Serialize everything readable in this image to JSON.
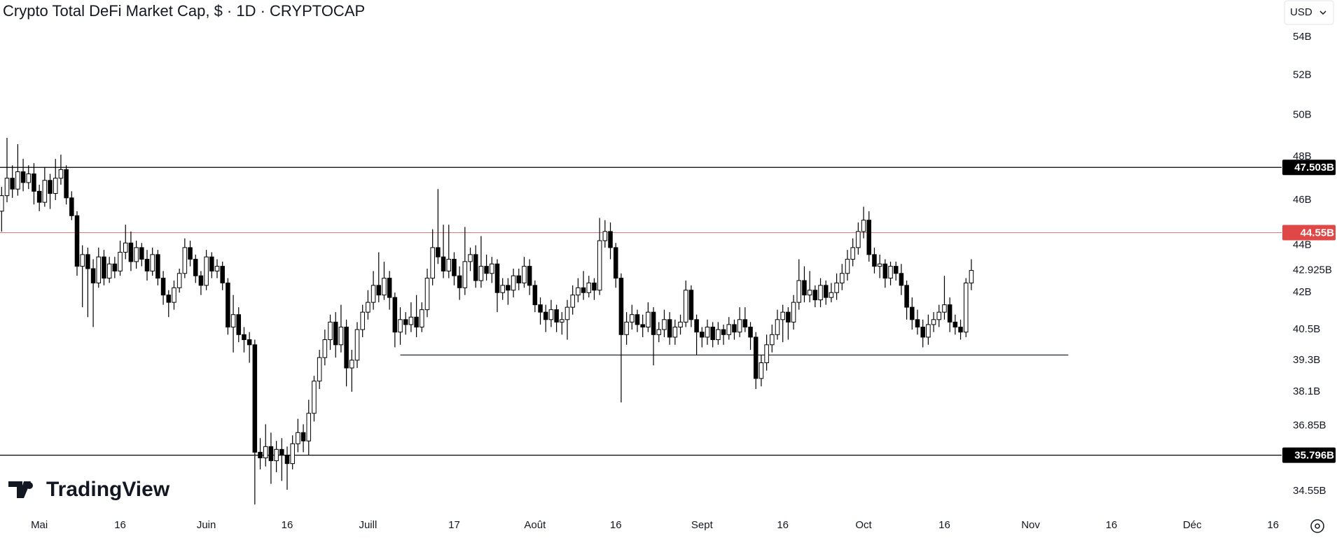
{
  "chart_data": {
    "type": "candlestick",
    "title": "Crypto Total DeFi Market Cap, $ · 1D · CRYPTOCAP",
    "currency": "USD",
    "watermark": "TradingView",
    "ylog": true,
    "ylim": [
      33.8,
      56.0
    ],
    "xlim": [
      -7.3,
      230.6
    ],
    "up_color": "#ffffff",
    "down_color": "#000000",
    "yticks": [
      {
        "value": 34.55,
        "label": "34.55B"
      },
      {
        "value": 36.85,
        "label": "36.85B"
      },
      {
        "value": 38.1,
        "label": "38.1B"
      },
      {
        "value": 39.3,
        "label": "39.3B"
      },
      {
        "value": 40.5,
        "label": "40.5B"
      },
      {
        "value": 42,
        "label": "42B"
      },
      {
        "value": 42.925,
        "label": "42.925B"
      },
      {
        "value": 44,
        "label": "44B"
      },
      {
        "value": 46,
        "label": "46B"
      },
      {
        "value": 48,
        "label": "48B"
      },
      {
        "value": 50,
        "label": "50B"
      },
      {
        "value": 52,
        "label": "52B"
      },
      {
        "value": 54,
        "label": "54B"
      }
    ],
    "xticks": [
      {
        "value": 0,
        "label": "Mai"
      },
      {
        "value": 15,
        "label": "16"
      },
      {
        "value": 31,
        "label": "Juin"
      },
      {
        "value": 46,
        "label": "16"
      },
      {
        "value": 61,
        "label": "Juill"
      },
      {
        "value": 77,
        "label": "17"
      },
      {
        "value": 92,
        "label": "Août"
      },
      {
        "value": 107,
        "label": "16"
      },
      {
        "value": 123,
        "label": "Sept"
      },
      {
        "value": 138,
        "label": "16"
      },
      {
        "value": 153,
        "label": "Oct"
      },
      {
        "value": 168,
        "label": "16"
      },
      {
        "value": 184,
        "label": "Nov"
      },
      {
        "value": 199,
        "label": "16"
      },
      {
        "value": 214,
        "label": "Déc"
      },
      {
        "value": 229,
        "label": "16"
      }
    ],
    "levels": [
      {
        "value": 47.503,
        "label": "47.503B",
        "color": "#000000"
      },
      {
        "value": 44.55,
        "label": "44.55B",
        "color": "#e04848"
      },
      {
        "value": 35.796,
        "label": "35.796B",
        "color": "#000000"
      }
    ],
    "lines": [
      {
        "value": 39.5,
        "xlim": [
          67,
          191
        ]
      }
    ],
    "x": [
      -7,
      -6,
      -5,
      -4,
      -3,
      -2,
      -1,
      0,
      1,
      2,
      3,
      4,
      5,
      6,
      7,
      8,
      9,
      10,
      11,
      12,
      13,
      14,
      15,
      16,
      17,
      18,
      19,
      20,
      21,
      22,
      23,
      24,
      25,
      26,
      27,
      28,
      29,
      30,
      31,
      32,
      33,
      34,
      35,
      36,
      37,
      38,
      39,
      40,
      41,
      42,
      43,
      44,
      45,
      46,
      47,
      48,
      49,
      50,
      51,
      52,
      53,
      54,
      55,
      56,
      57,
      58,
      59,
      60,
      61,
      62,
      63,
      64,
      65,
      66,
      67,
      68,
      69,
      70,
      71,
      72,
      73,
      74,
      75,
      76,
      77,
      78,
      79,
      80,
      81,
      82,
      83,
      84,
      85,
      86,
      87,
      88,
      89,
      90,
      91,
      92,
      93,
      94,
      95,
      96,
      97,
      98,
      99,
      100,
      101,
      102,
      103,
      104,
      105,
      106,
      107,
      108,
      109,
      110,
      111,
      112,
      113,
      114,
      115,
      116,
      117,
      118,
      119,
      120,
      121,
      122,
      123,
      124,
      125,
      126,
      127,
      128,
      129,
      130,
      131,
      132,
      133,
      134,
      135,
      136,
      137,
      138,
      139,
      140,
      141,
      142,
      143,
      144,
      145,
      146,
      147,
      148,
      149,
      150,
      151,
      152,
      153,
      154,
      155,
      156,
      157,
      158,
      159,
      160,
      161,
      162,
      163,
      164,
      165,
      166,
      167,
      168,
      169,
      170,
      171,
      172,
      173
    ],
    "candles": [
      [
        45.5,
        46.6,
        44.6,
        46.2
      ],
      [
        46.2,
        48.9,
        45.9,
        47.0
      ],
      [
        47.0,
        47.6,
        46.1,
        46.5
      ],
      [
        46.5,
        48.6,
        46.2,
        47.3
      ],
      [
        47.3,
        47.9,
        46.4,
        46.8
      ],
      [
        46.8,
        47.6,
        46.5,
        47.2
      ],
      [
        47.2,
        47.7,
        45.8,
        46.4
      ],
      [
        46.4,
        46.7,
        45.5,
        45.9
      ],
      [
        45.9,
        47.5,
        45.7,
        46.9
      ],
      [
        46.9,
        47.2,
        45.6,
        46.3
      ],
      [
        46.3,
        47.9,
        46.0,
        47.0
      ],
      [
        47.0,
        48.1,
        46.7,
        47.4
      ],
      [
        47.4,
        47.6,
        45.8,
        46.1
      ],
      [
        46.1,
        46.4,
        45.1,
        45.3
      ],
      [
        45.3,
        45.5,
        42.7,
        43.1
      ],
      [
        43.1,
        44.0,
        41.4,
        43.6
      ],
      [
        43.6,
        43.9,
        41.0,
        43.0
      ],
      [
        43.0,
        43.4,
        40.6,
        42.4
      ],
      [
        42.4,
        43.9,
        42.2,
        43.5
      ],
      [
        43.5,
        43.8,
        42.3,
        42.6
      ],
      [
        42.6,
        43.5,
        42.4,
        43.2
      ],
      [
        43.2,
        43.5,
        42.6,
        42.9
      ],
      [
        42.9,
        44.2,
        42.7,
        43.7
      ],
      [
        43.7,
        44.9,
        43.4,
        44.1
      ],
      [
        44.1,
        44.6,
        42.9,
        43.3
      ],
      [
        43.3,
        44.2,
        43.0,
        43.9
      ],
      [
        43.9,
        44.1,
        43.1,
        43.4
      ],
      [
        43.4,
        43.8,
        42.5,
        42.9
      ],
      [
        42.9,
        43.9,
        42.7,
        43.6
      ],
      [
        43.6,
        43.8,
        42.3,
        42.6
      ],
      [
        42.6,
        42.9,
        41.5,
        41.9
      ],
      [
        41.9,
        42.1,
        41.0,
        41.6
      ],
      [
        41.6,
        42.5,
        41.3,
        42.2
      ],
      [
        42.2,
        43.0,
        42.0,
        42.8
      ],
      [
        42.8,
        44.3,
        42.6,
        43.9
      ],
      [
        43.9,
        44.2,
        43.1,
        43.4
      ],
      [
        43.4,
        43.6,
        42.4,
        42.7
      ],
      [
        42.7,
        42.9,
        41.9,
        42.3
      ],
      [
        42.3,
        43.8,
        42.1,
        43.5
      ],
      [
        43.5,
        43.7,
        42.6,
        42.9
      ],
      [
        42.9,
        43.4,
        42.6,
        43.1
      ],
      [
        43.1,
        43.3,
        42.1,
        42.4
      ],
      [
        42.4,
        42.6,
        40.3,
        40.6
      ],
      [
        40.6,
        41.9,
        39.6,
        41.1
      ],
      [
        41.1,
        41.4,
        40.0,
        40.3
      ],
      [
        40.3,
        40.6,
        39.6,
        40.1
      ],
      [
        40.1,
        40.4,
        39.2,
        39.9
      ],
      [
        39.9,
        40.1,
        34.1,
        35.9
      ],
      [
        35.9,
        36.4,
        35.3,
        35.7
      ],
      [
        35.7,
        36.9,
        35.4,
        36.1
      ],
      [
        36.1,
        36.6,
        34.8,
        35.6
      ],
      [
        35.6,
        36.3,
        35.2,
        36.0
      ],
      [
        36.0,
        36.4,
        34.9,
        35.8
      ],
      [
        35.8,
        36.1,
        34.6,
        35.5
      ],
      [
        35.5,
        36.5,
        35.3,
        36.2
      ],
      [
        36.2,
        37.1,
        35.9,
        36.6
      ],
      [
        36.6,
        36.9,
        35.9,
        36.3
      ],
      [
        36.3,
        37.8,
        35.8,
        37.3
      ],
      [
        37.3,
        38.7,
        37.0,
        38.5
      ],
      [
        38.5,
        39.7,
        38.2,
        39.4
      ],
      [
        39.4,
        40.5,
        39.1,
        40.1
      ],
      [
        40.1,
        41.1,
        39.7,
        40.8
      ],
      [
        40.8,
        41.2,
        39.4,
        39.9
      ],
      [
        39.9,
        41.5,
        39.6,
        40.6
      ],
      [
        40.6,
        40.9,
        38.3,
        39.0
      ],
      [
        39.0,
        39.7,
        38.1,
        39.3
      ],
      [
        39.3,
        40.8,
        39.0,
        40.5
      ],
      [
        40.5,
        41.5,
        40.2,
        41.2
      ],
      [
        41.2,
        42.1,
        40.9,
        41.6
      ],
      [
        41.6,
        42.9,
        41.3,
        42.3
      ],
      [
        42.3,
        43.7,
        41.6,
        41.9
      ],
      [
        41.9,
        43.3,
        41.7,
        42.6
      ],
      [
        42.6,
        42.9,
        41.3,
        41.8
      ],
      [
        41.8,
        42.0,
        39.8,
        40.4
      ],
      [
        40.4,
        41.4,
        39.9,
        40.9
      ],
      [
        40.9,
        41.2,
        40.3,
        40.7
      ],
      [
        40.7,
        41.6,
        40.4,
        41.0
      ],
      [
        41.0,
        41.9,
        40.2,
        40.6
      ],
      [
        40.6,
        41.6,
        40.4,
        41.3
      ],
      [
        41.3,
        43.0,
        41.0,
        42.6
      ],
      [
        42.6,
        44.7,
        42.3,
        43.9
      ],
      [
        43.9,
        46.5,
        43.2,
        43.5
      ],
      [
        43.5,
        44.9,
        42.6,
        42.9
      ],
      [
        42.9,
        44.9,
        42.6,
        43.4
      ],
      [
        43.4,
        43.7,
        42.3,
        42.7
      ],
      [
        42.7,
        43.1,
        41.7,
        42.2
      ],
      [
        42.2,
        44.8,
        41.9,
        43.3
      ],
      [
        43.3,
        43.9,
        42.9,
        43.6
      ],
      [
        43.6,
        44.0,
        42.2,
        42.5
      ],
      [
        42.5,
        44.4,
        42.2,
        43.1
      ],
      [
        43.1,
        43.6,
        42.5,
        42.8
      ],
      [
        42.8,
        43.5,
        42.4,
        43.2
      ],
      [
        43.2,
        43.4,
        41.2,
        42.0
      ],
      [
        42.0,
        42.6,
        41.7,
        42.3
      ],
      [
        42.3,
        42.6,
        41.5,
        42.1
      ],
      [
        42.1,
        43.0,
        41.8,
        42.7
      ],
      [
        42.7,
        43.0,
        42.1,
        42.4
      ],
      [
        42.4,
        43.5,
        42.2,
        43.1
      ],
      [
        43.1,
        43.4,
        41.9,
        42.3
      ],
      [
        42.3,
        42.5,
        41.2,
        41.5
      ],
      [
        41.5,
        41.8,
        40.7,
        41.2
      ],
      [
        41.2,
        41.5,
        40.4,
        40.9
      ],
      [
        40.9,
        41.7,
        40.6,
        41.3
      ],
      [
        41.3,
        41.5,
        40.4,
        40.8
      ],
      [
        40.8,
        41.2,
        40.3,
        40.9
      ],
      [
        40.9,
        41.7,
        40.1,
        41.4
      ],
      [
        41.4,
        42.3,
        41.1,
        41.9
      ],
      [
        41.9,
        42.6,
        41.6,
        42.2
      ],
      [
        42.2,
        42.9,
        41.7,
        42.0
      ],
      [
        42.0,
        42.7,
        41.8,
        42.4
      ],
      [
        42.4,
        42.6,
        41.7,
        42.1
      ],
      [
        42.1,
        45.2,
        41.9,
        44.2
      ],
      [
        44.2,
        45.1,
        43.9,
        44.6
      ],
      [
        44.6,
        45.0,
        43.4,
        43.9
      ],
      [
        43.9,
        44.1,
        42.2,
        42.6
      ],
      [
        42.6,
        42.8,
        37.7,
        40.3
      ],
      [
        40.3,
        41.2,
        39.9,
        40.8
      ],
      [
        40.8,
        41.5,
        40.5,
        41.1
      ],
      [
        41.1,
        41.3,
        40.4,
        40.7
      ],
      [
        40.7,
        41.1,
        40.2,
        40.6
      ],
      [
        40.6,
        41.6,
        40.4,
        41.2
      ],
      [
        41.2,
        41.4,
        39.1,
        40.3
      ],
      [
        40.3,
        40.8,
        40.0,
        40.5
      ],
      [
        40.5,
        41.3,
        40.2,
        40.9
      ],
      [
        40.9,
        41.2,
        39.9,
        40.2
      ],
      [
        40.2,
        40.9,
        39.9,
        40.6
      ],
      [
        40.6,
        41.1,
        40.3,
        40.8
      ],
      [
        40.8,
        42.5,
        40.6,
        42.1
      ],
      [
        42.1,
        42.3,
        40.6,
        40.9
      ],
      [
        40.9,
        41.1,
        39.5,
        40.4
      ],
      [
        40.4,
        40.6,
        39.8,
        40.2
      ],
      [
        40.2,
        40.9,
        39.9,
        40.6
      ],
      [
        40.6,
        40.8,
        39.8,
        40.1
      ],
      [
        40.1,
        40.8,
        39.9,
        40.5
      ],
      [
        40.5,
        40.7,
        39.9,
        40.3
      ],
      [
        40.3,
        41.0,
        40.1,
        40.7
      ],
      [
        40.7,
        40.9,
        40.1,
        40.4
      ],
      [
        40.4,
        41.4,
        40.2,
        40.9
      ],
      [
        40.9,
        41.4,
        40.4,
        40.6
      ],
      [
        40.6,
        40.8,
        39.7,
        40.2
      ],
      [
        40.2,
        40.4,
        38.2,
        38.6
      ],
      [
        38.6,
        39.5,
        38.3,
        39.2
      ],
      [
        39.2,
        40.3,
        38.9,
        39.9
      ],
      [
        39.9,
        40.7,
        39.6,
        40.3
      ],
      [
        40.3,
        41.3,
        40.1,
        40.9
      ],
      [
        40.9,
        41.5,
        40.0,
        41.2
      ],
      [
        41.2,
        41.4,
        40.1,
        40.8
      ],
      [
        40.8,
        41.9,
        40.5,
        41.6
      ],
      [
        41.6,
        43.4,
        41.3,
        42.5
      ],
      [
        42.5,
        43.1,
        41.6,
        41.9
      ],
      [
        41.9,
        42.9,
        41.6,
        42.1
      ],
      [
        42.1,
        42.3,
        41.4,
        41.7
      ],
      [
        41.7,
        42.6,
        41.4,
        42.3
      ],
      [
        42.3,
        42.5,
        41.5,
        41.8
      ],
      [
        41.8,
        42.4,
        41.6,
        42.0
      ],
      [
        42.0,
        42.8,
        41.7,
        42.4
      ],
      [
        42.4,
        43.2,
        42.1,
        42.8
      ],
      [
        42.8,
        43.8,
        42.5,
        43.4
      ],
      [
        43.4,
        44.3,
        43.1,
        43.9
      ],
      [
        43.9,
        45.0,
        43.6,
        44.6
      ],
      [
        44.6,
        45.7,
        44.3,
        45.1
      ],
      [
        45.1,
        45.5,
        43.3,
        43.6
      ],
      [
        43.6,
        43.9,
        42.8,
        43.1
      ],
      [
        43.1,
        43.6,
        42.6,
        43.2
      ],
      [
        43.2,
        43.4,
        42.2,
        42.6
      ],
      [
        42.6,
        43.3,
        42.3,
        43.1
      ],
      [
        43.1,
        43.3,
        42.5,
        42.8
      ],
      [
        42.8,
        43.2,
        41.9,
        42.3
      ],
      [
        42.3,
        42.5,
        40.9,
        41.4
      ],
      [
        41.4,
        41.8,
        40.5,
        40.9
      ],
      [
        40.9,
        41.3,
        40.3,
        40.6
      ],
      [
        40.6,
        40.9,
        39.8,
        40.2
      ],
      [
        40.2,
        41.1,
        39.9,
        40.7
      ],
      [
        40.7,
        41.2,
        40.4,
        40.9
      ],
      [
        40.9,
        41.5,
        40.6,
        41.2
      ],
      [
        41.2,
        42.7,
        40.9,
        41.5
      ],
      [
        41.5,
        41.8,
        40.4,
        40.8
      ],
      [
        40.8,
        41.1,
        40.3,
        40.6
      ],
      [
        40.6,
        40.9,
        40.1,
        40.4
      ],
      [
        40.4,
        42.6,
        40.2,
        42.4
      ],
      [
        42.4,
        43.4,
        42.1,
        42.925
      ]
    ]
  }
}
